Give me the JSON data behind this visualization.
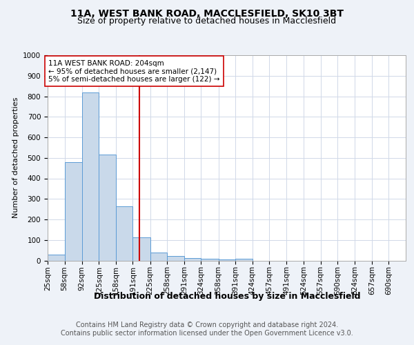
{
  "title1": "11A, WEST BANK ROAD, MACCLESFIELD, SK10 3BT",
  "title2": "Size of property relative to detached houses in Macclesfield",
  "xlabel": "Distribution of detached houses by size in Macclesfield",
  "ylabel": "Number of detached properties",
  "bin_labels": [
    "25sqm",
    "58sqm",
    "92sqm",
    "125sqm",
    "158sqm",
    "191sqm",
    "225sqm",
    "258sqm",
    "291sqm",
    "324sqm",
    "358sqm",
    "391sqm",
    "424sqm",
    "457sqm",
    "491sqm",
    "524sqm",
    "557sqm",
    "590sqm",
    "624sqm",
    "657sqm",
    "690sqm"
  ],
  "bin_edges": [
    25,
    58,
    92,
    125,
    158,
    191,
    225,
    258,
    291,
    324,
    358,
    391,
    424,
    457,
    491,
    524,
    557,
    590,
    624,
    657,
    690,
    723
  ],
  "bar_values": [
    30,
    480,
    820,
    515,
    265,
    113,
    38,
    22,
    13,
    8,
    5,
    10,
    0,
    0,
    0,
    0,
    0,
    0,
    0,
    0,
    0
  ],
  "bar_face_color": "#c9d9ea",
  "bar_edge_color": "#5b9bd5",
  "vline_x": 204,
  "vline_color": "#cc0000",
  "annotation_box_text": "11A WEST BANK ROAD: 204sqm\n← 95% of detached houses are smaller (2,147)\n5% of semi-detached houses are larger (122) →",
  "annotation_box_facecolor": "white",
  "annotation_box_edgecolor": "#cc0000",
  "ylim": [
    0,
    1000
  ],
  "grid_color": "#d0d8e8",
  "background_color": "#eef2f8",
  "plot_bg_color": "white",
  "footer_text": "Contains HM Land Registry data © Crown copyright and database right 2024.\nContains public sector information licensed under the Open Government Licence v3.0.",
  "title1_fontsize": 10,
  "title2_fontsize": 9,
  "xlabel_fontsize": 9,
  "ylabel_fontsize": 8,
  "tick_fontsize": 7.5,
  "footer_fontsize": 7,
  "annot_fontsize": 7.5
}
